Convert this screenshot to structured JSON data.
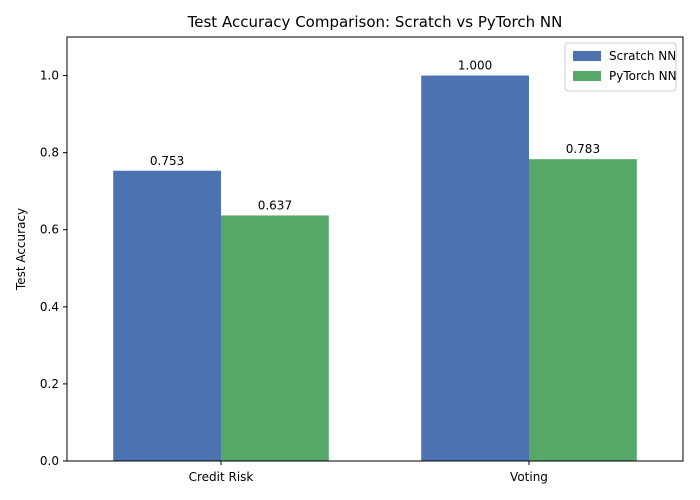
{
  "chart_data": {
    "type": "bar",
    "title": "Test Accuracy Comparison: Scratch vs PyTorch NN",
    "xlabel": "",
    "ylabel": "Test Accuracy",
    "categories": [
      "Credit Risk",
      "Voting"
    ],
    "series": [
      {
        "name": "Scratch NN",
        "values": [
          0.753,
          1.0
        ],
        "labels": [
          "0.753",
          "1.000"
        ],
        "color": "#4c72b0"
      },
      {
        "name": "PyTorch NN",
        "values": [
          0.637,
          0.783
        ],
        "labels": [
          "0.637",
          "0.783"
        ],
        "color": "#55a868"
      }
    ],
    "ylim": [
      0,
      1.1
    ],
    "yticks": [
      0.0,
      0.2,
      0.4,
      0.6,
      0.8,
      1.0
    ],
    "ytick_labels": [
      "0.0",
      "0.2",
      "0.4",
      "0.6",
      "0.8",
      "1.0"
    ],
    "grid": false,
    "legend_position": "top-right"
  }
}
